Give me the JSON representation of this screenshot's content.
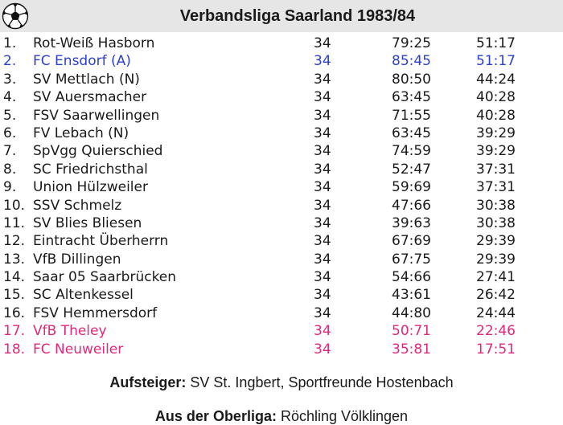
{
  "header": {
    "title": "Verbandsliga Saarland 1983/84"
  },
  "colors": {
    "header_bg": "#e6e6e6",
    "promoted": "#2b3fcf",
    "relegated": "#e0287a",
    "text": "#1a1a1a"
  },
  "table": {
    "rows": [
      {
        "rank": "1.",
        "team": "Rot-Weiß Hasborn",
        "games": "34",
        "goals": "79:25",
        "points": "51:17",
        "status": "normal"
      },
      {
        "rank": "2.",
        "team": "FC Ensdorf (A)",
        "games": "34",
        "goals": "85:45",
        "points": "51:17",
        "status": "promoted"
      },
      {
        "rank": "3.",
        "team": "SV Mettlach (N)",
        "games": "34",
        "goals": "80:50",
        "points": "44:24",
        "status": "normal"
      },
      {
        "rank": "4.",
        "team": "SV Auersmacher",
        "games": "34",
        "goals": "63:45",
        "points": "40:28",
        "status": "normal"
      },
      {
        "rank": "5.",
        "team": "FSV Saarwellingen",
        "games": "34",
        "goals": "71:55",
        "points": "40:28",
        "status": "normal"
      },
      {
        "rank": "6.",
        "team": "FV Lebach (N)",
        "games": "34",
        "goals": "63:45",
        "points": "39:29",
        "status": "normal"
      },
      {
        "rank": "7.",
        "team": "SpVgg Quierschied",
        "games": "34",
        "goals": "74:59",
        "points": "39:29",
        "status": "normal"
      },
      {
        "rank": "8.",
        "team": "SC Friedrichsthal",
        "games": "34",
        "goals": "52:47",
        "points": "37:31",
        "status": "normal"
      },
      {
        "rank": "9.",
        "team": "Union Hülzweiler",
        "games": "34",
        "goals": "59:69",
        "points": "37:31",
        "status": "normal"
      },
      {
        "rank": "10.",
        "team": "SSV Schmelz",
        "games": "34",
        "goals": "47:66",
        "points": "30:38",
        "status": "normal"
      },
      {
        "rank": "11.",
        "team": "SV Blies Bliesen",
        "games": "34",
        "goals": "39:63",
        "points": "30:38",
        "status": "normal"
      },
      {
        "rank": "12.",
        "team": "Eintracht Überherrn",
        "games": "34",
        "goals": "67:69",
        "points": "29:39",
        "status": "normal"
      },
      {
        "rank": "13.",
        "team": "VfB Dillingen",
        "games": "34",
        "goals": "67:75",
        "points": "29:39",
        "status": "normal"
      },
      {
        "rank": "14.",
        "team": "Saar 05 Saarbrücken",
        "games": "34",
        "goals": "54:66",
        "points": "27:41",
        "status": "normal"
      },
      {
        "rank": "15.",
        "team": "SC Altenkessel",
        "games": "34",
        "goals": "43:61",
        "points": "26:42",
        "status": "normal"
      },
      {
        "rank": "16.",
        "team": "FSV Hemmersdorf",
        "games": "34",
        "goals": "44:80",
        "points": "24:44",
        "status": "normal"
      },
      {
        "rank": "17.",
        "team": "VfB Theley",
        "games": "34",
        "goals": "50:71",
        "points": "22:46",
        "status": "relegated"
      },
      {
        "rank": "18.",
        "team": "FC Neuweiler",
        "games": "34",
        "goals": "35:81",
        "points": "17:51",
        "status": "relegated"
      }
    ]
  },
  "footer": {
    "promoted_label": "Aufsteiger:",
    "promoted_value": "SV St. Ingbert, Sportfreunde Hostenbach",
    "relegated_from_label": "Aus der Oberliga:",
    "relegated_from_value": "Röchling Völklingen"
  }
}
